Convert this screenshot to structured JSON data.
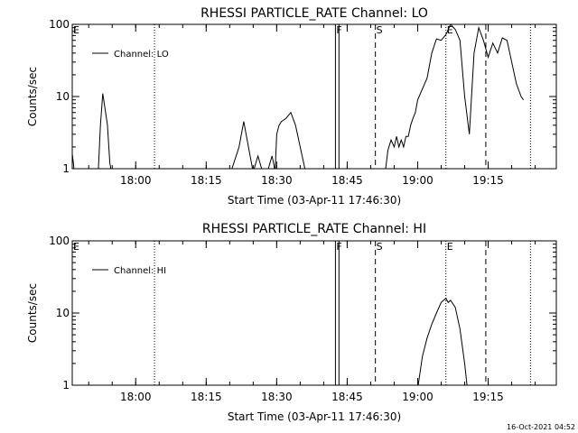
{
  "chart_data": [
    {
      "type": "line",
      "title": "RHESSI PARTICLE_RATE Channel: LO",
      "xlabel": "Start Time (03-Apr-11 17:46:30)",
      "ylabel": "Counts/sec",
      "y_scale": "log",
      "ylim": [
        1,
        100
      ],
      "xlim": [
        "17:46:30",
        "19:29:30"
      ],
      "x_tick_labels": [
        "18:00",
        "18:15",
        "18:30",
        "18:45",
        "19:00",
        "19:15"
      ],
      "y_tick_labels": [
        "1",
        "10",
        "100"
      ],
      "legend": "top-left",
      "series": [
        {
          "name": "Channel: LO",
          "color": "#000000",
          "x": [
            "17:46:30",
            "17:46:45",
            "17:47:00",
            "17:52:00",
            "17:52:30",
            "17:53:00",
            "17:54:00",
            "17:54:30",
            "17:55:00",
            "18:20:00",
            "18:22:00",
            "18:23:00",
            "18:24:00",
            "18:25:00",
            "18:26:00",
            "18:27:00",
            "18:28:00",
            "18:29:00",
            "18:29:20",
            "18:29:40",
            "18:30:00",
            "18:30:30",
            "18:31:00",
            "18:32:00",
            "18:33:00",
            "18:34:00",
            "18:35:00",
            "18:36:00",
            "18:37:00",
            "18:38:00",
            "18:53:00",
            "18:53:40",
            "18:54:20",
            "18:55:00",
            "18:55:30",
            "18:56:00",
            "18:56:30",
            "18:57:00",
            "18:57:30",
            "18:58:00",
            "18:58:30",
            "18:59:00",
            "18:59:30",
            "19:00:00",
            "19:02:00",
            "19:03:00",
            "19:04:00",
            "19:05:00",
            "19:06:00",
            "19:07:00",
            "19:08:00",
            "19:09:00",
            "19:10:00",
            "19:11:00",
            "19:12:00",
            "19:13:00",
            "19:14:00",
            "19:15:00",
            "19:16:00",
            "19:17:00",
            "19:18:00",
            "19:19:00",
            "19:20:00",
            "19:21:00",
            "19:22:00",
            "19:22:30"
          ],
          "y": [
            1.6,
            1.2,
            0.8,
            0.8,
            4,
            11,
            4,
            1.2,
            0.8,
            0.8,
            2,
            4.5,
            2,
            0.9,
            1.5,
            0.9,
            0.9,
            1.5,
            1.2,
            0.9,
            3,
            4,
            4.5,
            5,
            6,
            4,
            2,
            1,
            0.8,
            0.8,
            0.8,
            1.8,
            2.5,
            2,
            2.8,
            2,
            2.5,
            2,
            2.8,
            2.8,
            4,
            5,
            6,
            9,
            18,
            40,
            63,
            60,
            72,
            100,
            85,
            60,
            10,
            3,
            40,
            90,
            60,
            35,
            55,
            40,
            65,
            60,
            30,
            15,
            10,
            9
          ]
        }
      ],
      "markers": [
        "E",
        "F",
        "S",
        "E"
      ]
    },
    {
      "type": "line",
      "title": "RHESSI PARTICLE_RATE Channel: HI",
      "xlabel": "Start Time (03-Apr-11 17:46:30)",
      "ylabel": "Counts/sec",
      "y_scale": "log",
      "ylim": [
        1,
        100
      ],
      "xlim": [
        "17:46:30",
        "19:29:30"
      ],
      "x_tick_labels": [
        "18:00",
        "18:15",
        "18:30",
        "18:45",
        "19:00",
        "19:15"
      ],
      "y_tick_labels": [
        "1",
        "10",
        "100"
      ],
      "legend": "top-left",
      "series": [
        {
          "name": "Channel: HI",
          "color": "#000000",
          "x": [
            "19:00:00",
            "19:01:00",
            "19:02:00",
            "19:03:00",
            "19:04:00",
            "19:05:00",
            "19:05:30",
            "19:06:00",
            "19:06:30",
            "19:07:00",
            "19:08:00",
            "19:09:00",
            "19:10:00",
            "19:10:30"
          ],
          "y": [
            0.9,
            2.5,
            4.5,
            7,
            10,
            14,
            15,
            16,
            14,
            15,
            12,
            6,
            2,
            1
          ]
        }
      ],
      "markers": [
        "E",
        "F",
        "S",
        "E"
      ]
    }
  ],
  "timestamp": "16-Oct-2021 04:52"
}
